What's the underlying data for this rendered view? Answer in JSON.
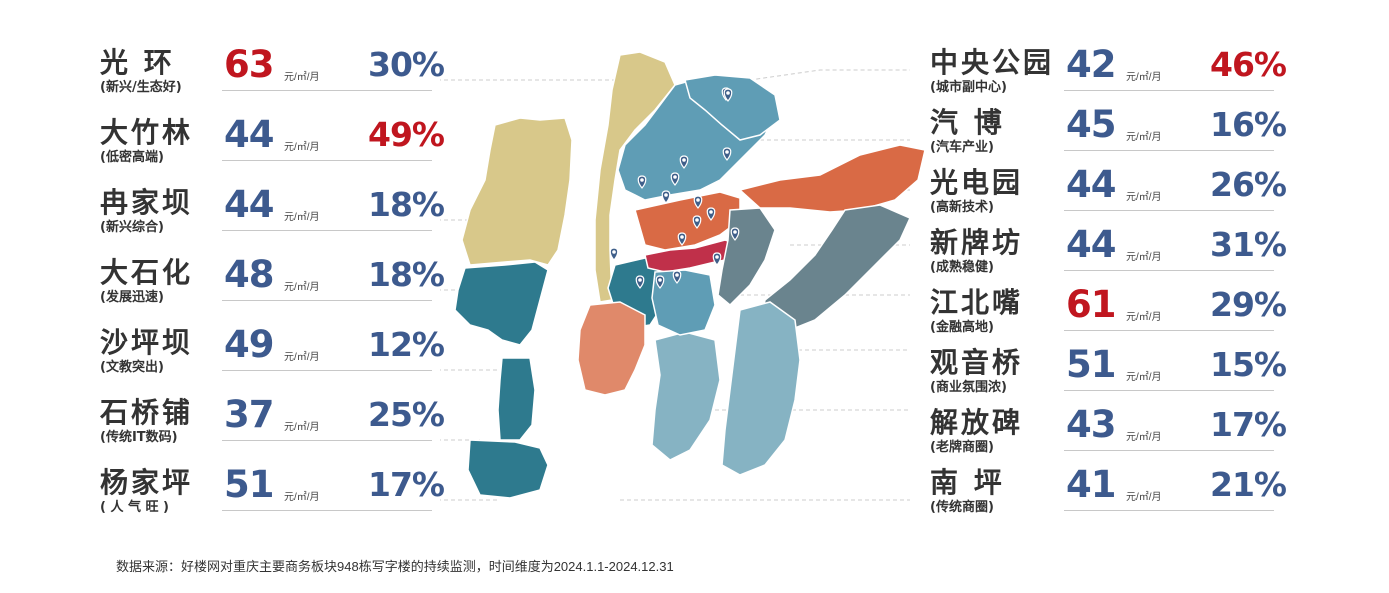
{
  "unit": "元/㎡/月",
  "left_districts": [
    {
      "name": "光  环",
      "sub": "(新兴/生态好)",
      "rent": "63",
      "rent_high": true,
      "pct": "30%",
      "pct_high": false
    },
    {
      "name": "大竹林",
      "sub": "(低密高端)",
      "rent": "44",
      "rent_high": false,
      "pct": "49%",
      "pct_high": true
    },
    {
      "name": "冉家坝",
      "sub": "(新兴综合)",
      "rent": "44",
      "rent_high": false,
      "pct": "18%",
      "pct_high": false
    },
    {
      "name": "大石化",
      "sub": "(发展迅速)",
      "rent": "48",
      "rent_high": false,
      "pct": "18%",
      "pct_high": false
    },
    {
      "name": "沙坪坝",
      "sub": "(文教突出)",
      "rent": "49",
      "rent_high": false,
      "pct": "12%",
      "pct_high": false
    },
    {
      "name": "石桥铺",
      "sub": "(传统IT数码)",
      "rent": "37",
      "rent_high": false,
      "pct": "25%",
      "pct_high": false
    },
    {
      "name": "杨家坪",
      "sub": "( 人 气 旺 )",
      "rent": "51",
      "rent_high": false,
      "pct": "17%",
      "pct_high": false
    }
  ],
  "right_districts": [
    {
      "name": "中央公园",
      "sub": "(城市副中心)",
      "rent": "42",
      "rent_high": false,
      "pct": "46%",
      "pct_high": true
    },
    {
      "name": "汽  博",
      "sub": "(汽车产业)",
      "rent": "45",
      "rent_high": false,
      "pct": "16%",
      "pct_high": false
    },
    {
      "name": "光电园",
      "sub": "(高新技术)",
      "rent": "44",
      "rent_high": false,
      "pct": "26%",
      "pct_high": false
    },
    {
      "name": "新牌坊",
      "sub": "(成熟稳健)",
      "rent": "44",
      "rent_high": false,
      "pct": "31%",
      "pct_high": false
    },
    {
      "name": "江北嘴",
      "sub": "(金融高地)",
      "rent": "61",
      "rent_high": true,
      "pct": "29%",
      "pct_high": false
    },
    {
      "name": "观音桥",
      "sub": "(商业氛围浓)",
      "rent": "51",
      "rent_high": false,
      "pct": "15%",
      "pct_high": false
    },
    {
      "name": "解放碑",
      "sub": "(老牌商圈)",
      "rent": "43",
      "rent_high": false,
      "pct": "17%",
      "pct_high": false
    },
    {
      "name": "南  坪",
      "sub": "(传统商圈)",
      "rent": "41",
      "rent_high": false,
      "pct": "21%",
      "pct_high": false
    }
  ],
  "colors": {
    "rent_normal": "#3d5a8e",
    "highlight_red": "#c0161f",
    "region_khaki": "#d8c88a",
    "region_teal_dark": "#2e7a8e",
    "region_steel_blue": "#5f9db5",
    "region_orange": "#d96a45",
    "region_salmon": "#e0896a",
    "region_slate": "#6a848e",
    "region_light_blue": "#86b3c3",
    "region_crimson": "#c0304a"
  },
  "map_pins": 17,
  "footnote": "数据来源：好楼网对重庆主要商务板块948栋写字楼的持续监测，时间维度为2024.1.1-2024.12.31"
}
